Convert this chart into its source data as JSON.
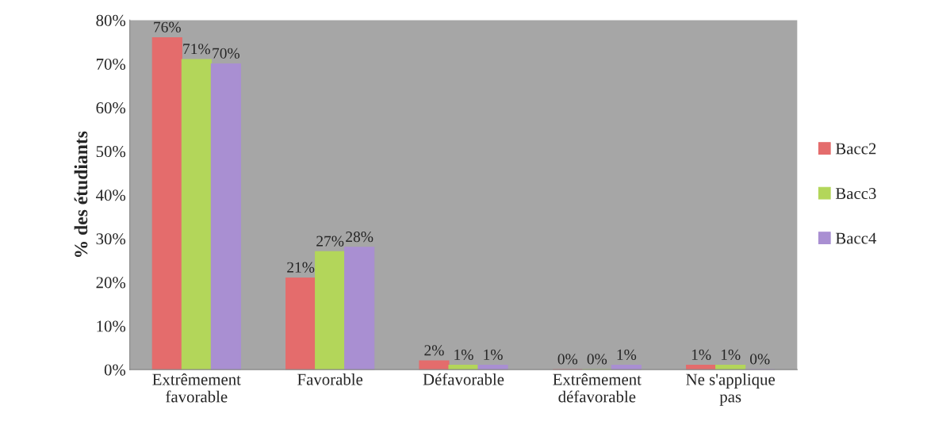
{
  "chart_data": {
    "type": "bar",
    "ylabel": "% des étudiants",
    "categories": [
      "Extrêmement\nfavorable",
      "Favorable",
      "Défavorable",
      "Extrêmement\ndéfavorable",
      "Ne s'applique\npas"
    ],
    "series": [
      {
        "name": "Bacc2",
        "color": "#e46c6c",
        "values": [
          76,
          21,
          2,
          0,
          1
        ],
        "value_labels": [
          "76%",
          "21%",
          "2%",
          "0%",
          "1%"
        ]
      },
      {
        "name": "Bacc3",
        "color": "#b3d65a",
        "values": [
          71,
          27,
          1,
          0,
          1
        ],
        "value_labels": [
          "71%",
          "27%",
          "1%",
          "0%",
          "1%"
        ]
      },
      {
        "name": "Bacc4",
        "color": "#a98fd2",
        "values": [
          70,
          28,
          1,
          1,
          0
        ],
        "value_labels": [
          "70%",
          "28%",
          "1%",
          "1%",
          "0%"
        ]
      }
    ],
    "ylim": [
      0,
      80
    ],
    "yticks": [
      {
        "value": 0,
        "label": "0%"
      },
      {
        "value": 10,
        "label": "10%"
      },
      {
        "value": 20,
        "label": "20%"
      },
      {
        "value": 30,
        "label": "30%"
      },
      {
        "value": 40,
        "label": "40%"
      },
      {
        "value": 50,
        "label": "50%"
      },
      {
        "value": 60,
        "label": "60%"
      },
      {
        "value": 70,
        "label": "70%"
      },
      {
        "value": 80,
        "label": "80%"
      }
    ],
    "grid": false,
    "legend": "right"
  }
}
